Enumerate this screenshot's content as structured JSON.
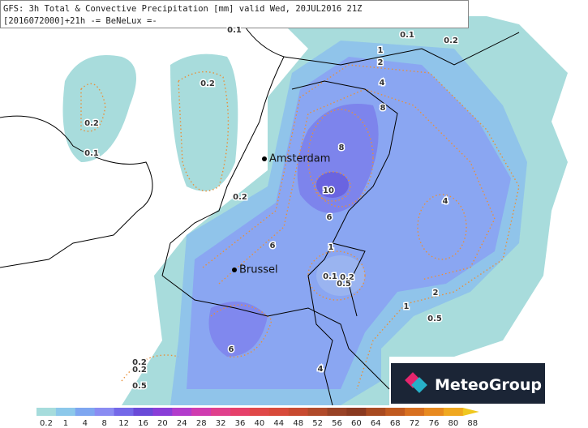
{
  "header": {
    "line1": "GFS: 3h Total & Convective Precipitation [mm] valid Wed, 20JUL2016 21Z",
    "line2": "[2016072000]+21h -= BeNeLux =-"
  },
  "cities": [
    "Amsterdam",
    "Brussel"
  ],
  "contour_labels": [
    "0.1",
    "0.1",
    "0.2",
    "1",
    "2",
    "4",
    "8",
    "8",
    "10",
    "6",
    "1",
    "6",
    "4",
    "0.1",
    "0.2",
    "0.5",
    "2",
    "1",
    "0.5",
    "6",
    "4",
    "0.2",
    "0.2",
    "0.1",
    "0.2",
    "0.2",
    "0.2",
    "0.5"
  ],
  "legend": {
    "labels": [
      "0.2",
      "1",
      "4",
      "8",
      "12",
      "16",
      "20",
      "24",
      "28",
      "32",
      "36",
      "40",
      "44",
      "48",
      "52",
      "56",
      "60",
      "64",
      "68",
      "72",
      "76",
      "80",
      "88"
    ],
    "colors": [
      "#a6dcdc",
      "#8cc8ea",
      "#7ea6f0",
      "#8a8cf2",
      "#7468e8",
      "#6a4ad8",
      "#8a3ed8",
      "#b23ccc",
      "#d03cb0",
      "#e0408c",
      "#e6406a",
      "#e04848",
      "#d84a3a",
      "#c84a30",
      "#b04a2a",
      "#984226",
      "#8a3a20",
      "#a84a20",
      "#c05a20",
      "#d87020",
      "#e88a20",
      "#f0a820",
      "#f0c820"
    ]
  },
  "logo": "MeteoGroup"
}
